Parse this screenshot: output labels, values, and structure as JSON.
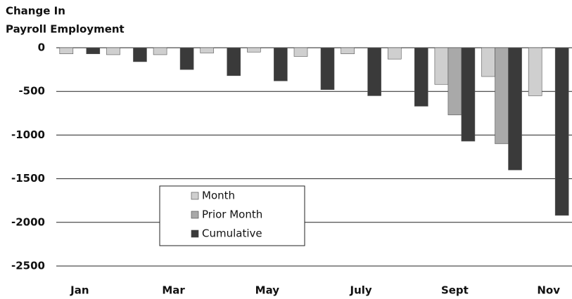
{
  "chart_data": {
    "type": "bar",
    "title": [
      "Change In",
      "Payroll Employment"
    ],
    "categories": [
      "Jan",
      null,
      "Mar",
      null,
      "May",
      null,
      "July",
      null,
      "Sept",
      null,
      "Nov"
    ],
    "series": [
      {
        "name": "Month",
        "color": "#cfcfcf",
        "values": [
          -70,
          -80,
          -80,
          -60,
          -50,
          -100,
          -70,
          -130,
          -420,
          -330,
          -550
        ]
      },
      {
        "name": "Prior Month",
        "color": "#a9a9a9",
        "values": [
          null,
          null,
          null,
          null,
          null,
          null,
          null,
          null,
          -770,
          -1100,
          null
        ]
      },
      {
        "name": "Cumulative",
        "color": "#3a3a3a",
        "values": [
          -70,
          -160,
          -250,
          -320,
          -380,
          -480,
          -550,
          -670,
          -1070,
          -1400,
          -1920
        ]
      }
    ],
    "ylim": [
      -2500,
      0
    ],
    "yticks": [
      0,
      -500,
      -1000,
      -1500,
      -2000,
      -2500
    ],
    "grid": true
  }
}
